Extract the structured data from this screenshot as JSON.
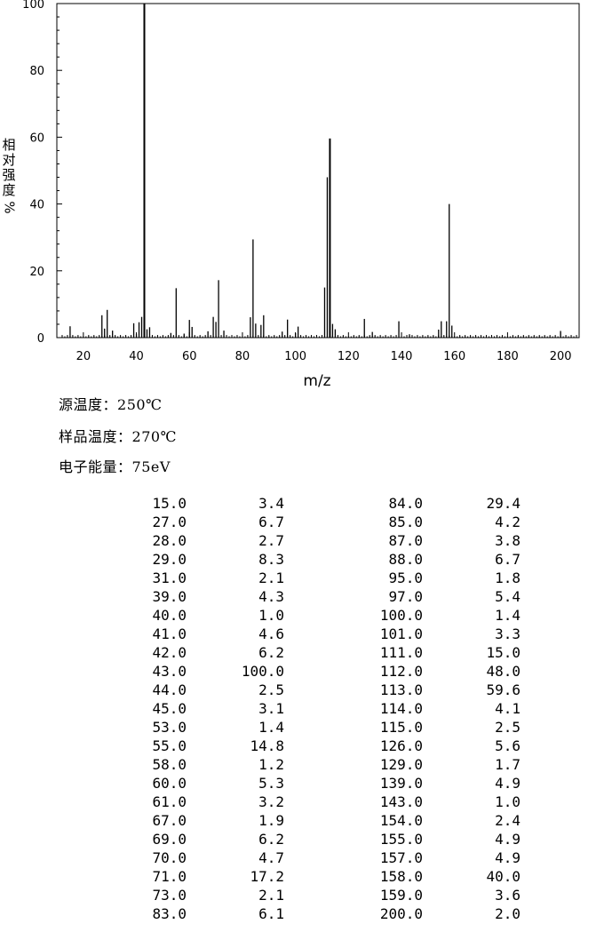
{
  "y_axis_label_chars": [
    "相",
    "对",
    "强",
    "度",
    "%"
  ],
  "conditions": [
    {
      "label": "源温度：",
      "value": "250℃"
    },
    {
      "label": "样品温度：",
      "value": "270℃"
    },
    {
      "label": "电子能量：",
      "value": "75eV"
    }
  ],
  "chart_data": {
    "type": "bar",
    "title": "",
    "xlabel": "m/z",
    "ylabel": "相对强度%",
    "xlim": [
      10,
      207
    ],
    "ylim": [
      0,
      100
    ],
    "x_ticks": [
      20,
      40,
      60,
      80,
      100,
      120,
      140,
      160,
      180,
      200
    ],
    "y_ticks": [
      0,
      20,
      40,
      60,
      80,
      100
    ],
    "grid": false,
    "peaks": [
      {
        "mz": "15.0",
        "ab": "3.4"
      },
      {
        "mz": "27.0",
        "ab": "6.7"
      },
      {
        "mz": "28.0",
        "ab": "2.7"
      },
      {
        "mz": "29.0",
        "ab": "8.3"
      },
      {
        "mz": "31.0",
        "ab": "2.1"
      },
      {
        "mz": "39.0",
        "ab": "4.3"
      },
      {
        "mz": "40.0",
        "ab": "1.0"
      },
      {
        "mz": "41.0",
        "ab": "4.6"
      },
      {
        "mz": "42.0",
        "ab": "6.2"
      },
      {
        "mz": "43.0",
        "ab": "100.0"
      },
      {
        "mz": "44.0",
        "ab": "2.5"
      },
      {
        "mz": "45.0",
        "ab": "3.1"
      },
      {
        "mz": "53.0",
        "ab": "1.4"
      },
      {
        "mz": "55.0",
        "ab": "14.8"
      },
      {
        "mz": "58.0",
        "ab": "1.2"
      },
      {
        "mz": "60.0",
        "ab": "5.3"
      },
      {
        "mz": "61.0",
        "ab": "3.2"
      },
      {
        "mz": "67.0",
        "ab": "1.9"
      },
      {
        "mz": "69.0",
        "ab": "6.2"
      },
      {
        "mz": "70.0",
        "ab": "4.7"
      },
      {
        "mz": "71.0",
        "ab": "17.2"
      },
      {
        "mz": "73.0",
        "ab": "2.1"
      },
      {
        "mz": "83.0",
        "ab": "6.1"
      },
      {
        "mz": "84.0",
        "ab": "29.4"
      },
      {
        "mz": "85.0",
        "ab": "4.2"
      },
      {
        "mz": "87.0",
        "ab": "3.8"
      },
      {
        "mz": "88.0",
        "ab": "6.7"
      },
      {
        "mz": "95.0",
        "ab": "1.8"
      },
      {
        "mz": "97.0",
        "ab": "5.4"
      },
      {
        "mz": "100.0",
        "ab": "1.4"
      },
      {
        "mz": "101.0",
        "ab": "3.3"
      },
      {
        "mz": "111.0",
        "ab": "15.0"
      },
      {
        "mz": "112.0",
        "ab": "48.0"
      },
      {
        "mz": "113.0",
        "ab": "59.6"
      },
      {
        "mz": "114.0",
        "ab": "4.1"
      },
      {
        "mz": "115.0",
        "ab": "2.5"
      },
      {
        "mz": "126.0",
        "ab": "5.6"
      },
      {
        "mz": "129.0",
        "ab": "1.7"
      },
      {
        "mz": "139.0",
        "ab": "4.9"
      },
      {
        "mz": "143.0",
        "ab": "1.0"
      },
      {
        "mz": "154.0",
        "ab": "2.4"
      },
      {
        "mz": "155.0",
        "ab": "4.9"
      },
      {
        "mz": "157.0",
        "ab": "4.9"
      },
      {
        "mz": "158.0",
        "ab": "40.0"
      },
      {
        "mz": "159.0",
        "ab": "3.6"
      },
      {
        "mz": "200.0",
        "ab": "2.0"
      }
    ]
  }
}
